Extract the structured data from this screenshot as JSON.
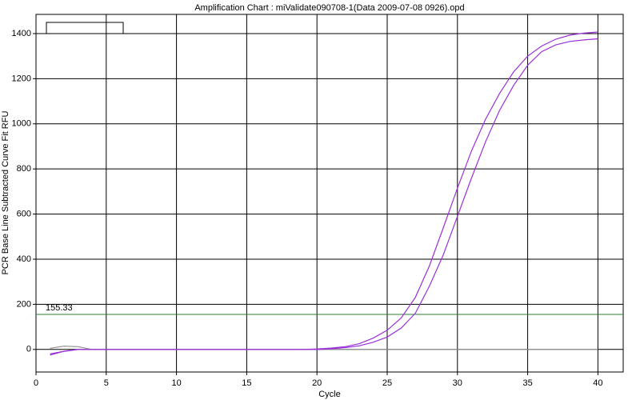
{
  "chart_data": {
    "type": "line",
    "title": "Amplification Chart : miValidate090708-1(Data 2009-07-08 0926).opd",
    "xlabel": "Cycle",
    "ylabel": "PCR Base Line Subtracted Curve Fit RFU",
    "x": [
      1,
      2,
      3,
      4,
      5,
      6,
      7,
      8,
      9,
      10,
      11,
      12,
      13,
      14,
      15,
      16,
      17,
      18,
      19,
      20,
      21,
      22,
      23,
      24,
      25,
      26,
      27,
      28,
      29,
      30,
      31,
      32,
      33,
      34,
      35,
      36,
      37,
      38,
      39,
      40
    ],
    "series": [
      {
        "color": "#9b30d9",
        "values": [
          -20,
          -8,
          0,
          0,
          0,
          0,
          0,
          0,
          0,
          0,
          0,
          0,
          0,
          0,
          0,
          0,
          0,
          0,
          0,
          2,
          6,
          12,
          25,
          50,
          85,
          140,
          230,
          370,
          540,
          715,
          880,
          1020,
          1135,
          1230,
          1300,
          1345,
          1375,
          1393,
          1402,
          1407
        ]
      },
      {
        "color": "#9b30d9",
        "values": [
          -25,
          -8,
          0,
          0,
          0,
          0,
          0,
          0,
          0,
          0,
          0,
          0,
          0,
          0,
          0,
          0,
          0,
          0,
          0,
          0,
          3,
          8,
          16,
          32,
          55,
          95,
          160,
          280,
          420,
          590,
          760,
          920,
          1060,
          1170,
          1260,
          1320,
          1350,
          1365,
          1372,
          1377
        ]
      },
      {
        "color": "#999999",
        "values": [
          5,
          15,
          12,
          0,
          0,
          0,
          0,
          0,
          0,
          0,
          0,
          0,
          0,
          0,
          0,
          0,
          0,
          0,
          0,
          0,
          0,
          0,
          0,
          0,
          0,
          0,
          0,
          0,
          0,
          0,
          0,
          0,
          0,
          0,
          0,
          0,
          0,
          0,
          0,
          0
        ]
      }
    ],
    "threshold": 155.33,
    "threshold_color": "#2e7d32",
    "xlim": [
      0,
      41.8
    ],
    "ylim": [
      -100,
      1485
    ],
    "xticks": [
      0,
      5,
      10,
      15,
      20,
      25,
      30,
      35,
      40
    ],
    "yticks": [
      0,
      200,
      400,
      600,
      800,
      1000,
      1200,
      1400
    ],
    "grid": true
  }
}
